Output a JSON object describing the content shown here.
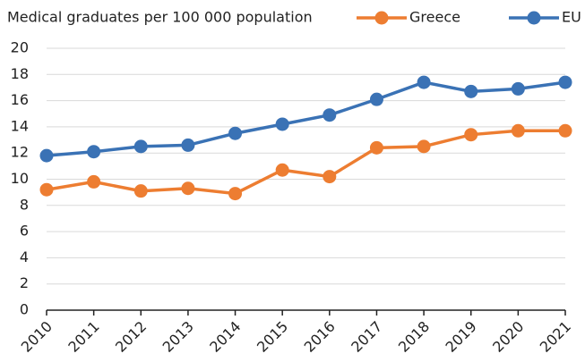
{
  "chart_data": {
    "type": "line",
    "title": "Medical graduates per 100 000 population",
    "categories": [
      "2010",
      "2011",
      "2012",
      "2013",
      "2014",
      "2015",
      "2016",
      "2017",
      "2018",
      "2019",
      "2020",
      "2021"
    ],
    "series": [
      {
        "name": "Greece",
        "color": "#ed7d31",
        "values": [
          9.2,
          9.8,
          9.1,
          9.3,
          8.9,
          10.7,
          10.2,
          12.4,
          12.5,
          13.4,
          13.7,
          13.7
        ]
      },
      {
        "name": "EU",
        "color": "#3a72b5",
        "values": [
          11.8,
          12.1,
          12.5,
          12.6,
          13.5,
          14.2,
          14.9,
          16.1,
          17.4,
          16.7,
          16.9,
          17.4
        ]
      }
    ],
    "ylim": [
      0,
      20
    ],
    "yticks": [
      0,
      2,
      4,
      6,
      8,
      10,
      12,
      14,
      16,
      18,
      20
    ],
    "grid": true
  }
}
